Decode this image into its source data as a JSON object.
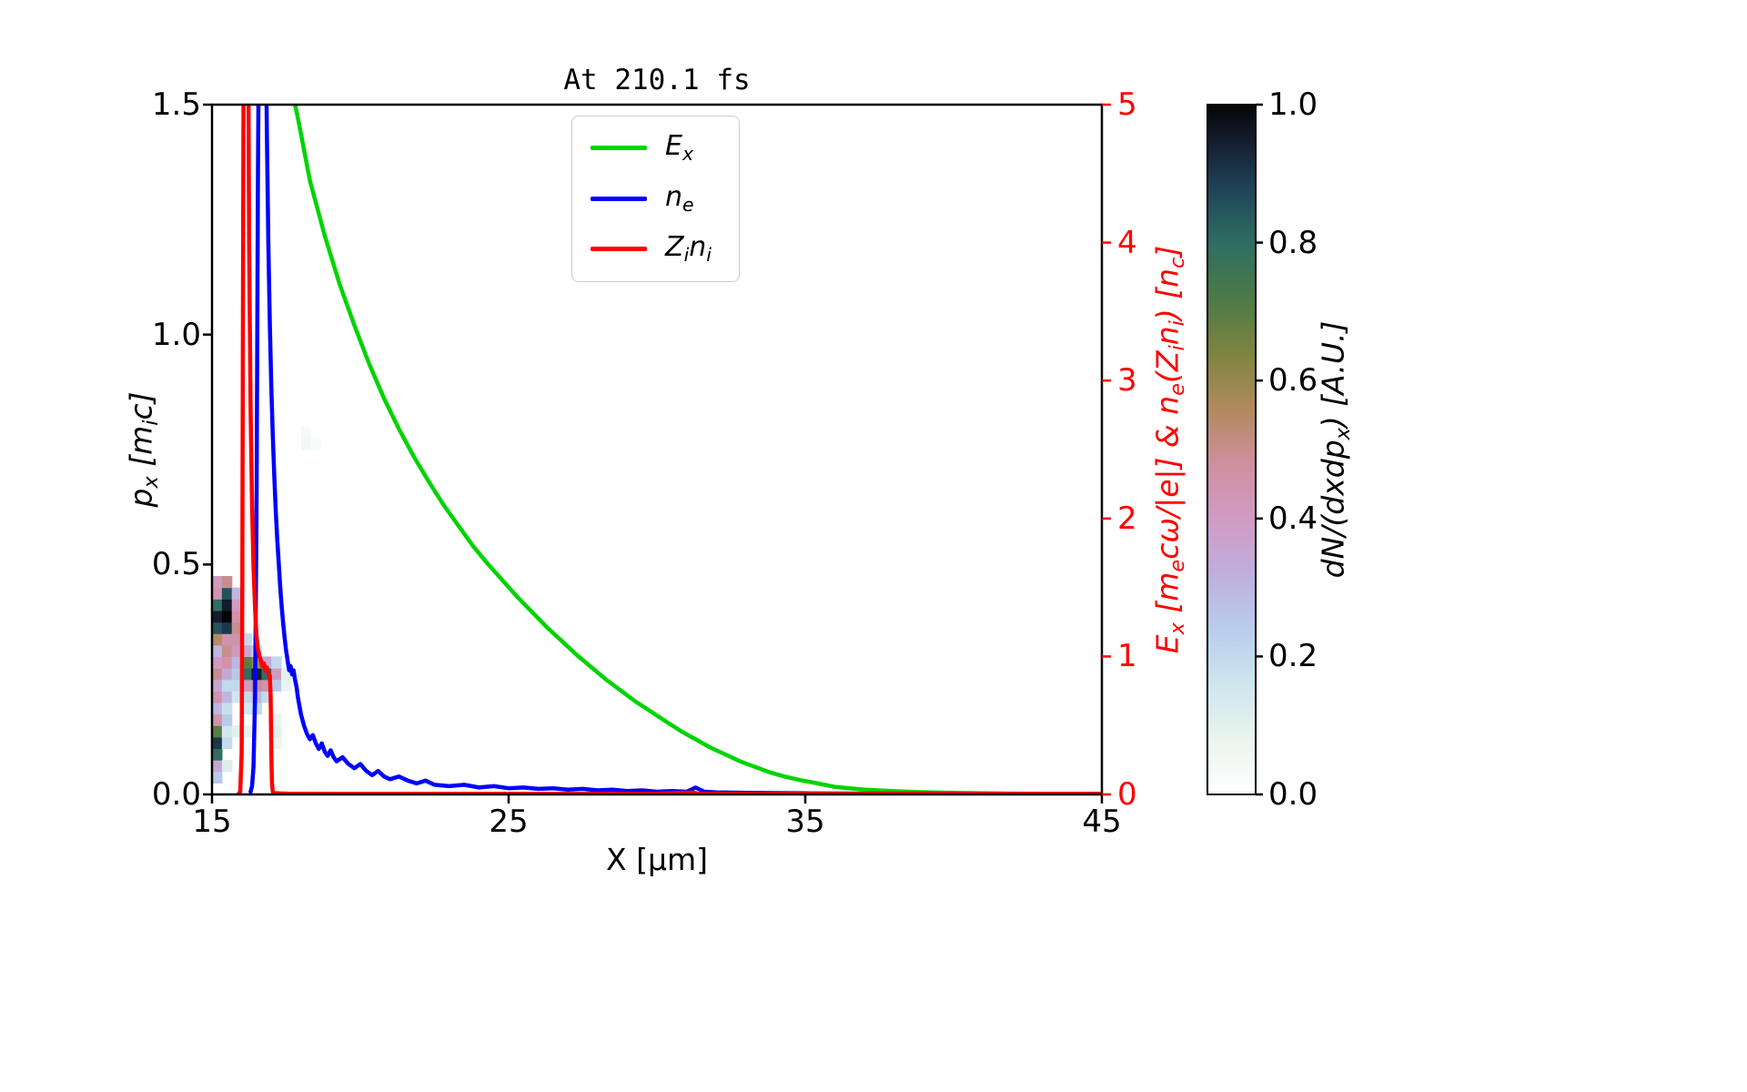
{
  "chart_data": {
    "type": "line",
    "title": "At 210.1 fs",
    "xlabel": "X [μm]",
    "ylabel_left": "p_{x} [m_{i}c]",
    "ylabel_right": "E_{x} [m_{e}cω/|e|] & n_{e}(Z_{i}n_{i}) [n_{c}]",
    "xlim": [
      15,
      45
    ],
    "ylim_left": [
      0,
      1.5
    ],
    "ylim_right": [
      0,
      5
    ],
    "xticks": [
      "15",
      "25",
      "35",
      "45"
    ],
    "yticks_left": [
      "0.0",
      "0.5",
      "1.0",
      "1.5"
    ],
    "yticks_right": [
      "0",
      "1",
      "2",
      "3",
      "4",
      "5"
    ],
    "axis_colors": {
      "left": "#000000",
      "right": "#ff0000"
    },
    "grid": false,
    "legend_position": "upper center",
    "legend": [
      {
        "id": "ex",
        "label": "E_{x}",
        "color": "#00d400"
      },
      {
        "id": "ne",
        "label": "n_{e}",
        "color": "#0000ff"
      },
      {
        "id": "zini",
        "label": "Z_{i}n_{i}",
        "color": "#ff0000"
      }
    ],
    "series": [
      {
        "id": "ex",
        "name": "E_x",
        "color": "#00d400",
        "axis": "right",
        "x": [
          17.6,
          17.9,
          18.3,
          18.8,
          19.3,
          19.8,
          20.3,
          20.8,
          21.3,
          21.8,
          22.3,
          22.8,
          23.3,
          23.8,
          24.3,
          24.8,
          25.3,
          25.8,
          26.3,
          26.8,
          27.3,
          27.8,
          28.3,
          28.8,
          29.3,
          29.8,
          30.3,
          30.8,
          31.3,
          31.8,
          32.3,
          32.8,
          33.3,
          33.8,
          34.3,
          34.8,
          35.3,
          36,
          37,
          38,
          39,
          40,
          41,
          42,
          43,
          44,
          45
        ],
        "y": [
          5.2,
          4.9,
          4.45,
          4.05,
          3.7,
          3.4,
          3.12,
          2.87,
          2.65,
          2.45,
          2.27,
          2.1,
          1.95,
          1.8,
          1.67,
          1.55,
          1.43,
          1.32,
          1.21,
          1.11,
          1.01,
          0.92,
          0.83,
          0.75,
          0.67,
          0.6,
          0.53,
          0.46,
          0.4,
          0.34,
          0.29,
          0.24,
          0.2,
          0.16,
          0.13,
          0.105,
          0.085,
          0.055,
          0.035,
          0.024,
          0.016,
          0.011,
          0.008,
          0.006,
          0.005,
          0.004,
          0.0035
        ]
      },
      {
        "id": "ne",
        "name": "n_e",
        "color": "#0000ff",
        "axis": "right",
        "x": [
          16.3,
          16.35,
          16.4,
          16.45,
          16.5,
          16.55,
          16.6,
          16.7,
          16.8,
          16.85,
          16.9,
          16.95,
          17.0,
          17.05,
          17.1,
          17.15,
          17.2,
          17.25,
          17.3,
          17.35,
          17.4,
          17.45,
          17.5,
          17.55,
          17.6,
          17.65,
          17.7,
          17.75,
          17.8,
          17.85,
          17.9,
          18.0,
          18.1,
          18.2,
          18.3,
          18.4,
          18.5,
          18.6,
          18.7,
          18.8,
          18.9,
          19.0,
          19.1,
          19.2,
          19.4,
          19.6,
          19.8,
          20.0,
          20.2,
          20.4,
          20.6,
          20.8,
          21.0,
          21.3,
          21.6,
          21.9,
          22.2,
          22.5,
          23.0,
          23.5,
          24.0,
          24.5,
          25.0,
          25.5,
          26.0,
          26.5,
          27.0,
          27.5,
          28.0,
          28.5,
          29.0,
          29.5,
          30.0,
          30.5,
          31.0,
          31.3,
          31.6,
          32.0,
          33,
          34,
          35,
          37,
          40,
          45
        ],
        "y": [
          0.02,
          0.06,
          0.2,
          0.7,
          2.0,
          4.5,
          6.2,
          6.5,
          5.8,
          4.8,
          4.0,
          3.4,
          2.95,
          2.6,
          2.3,
          2.05,
          1.85,
          1.67,
          1.5,
          1.36,
          1.24,
          1.13,
          1.04,
          0.97,
          0.9,
          0.93,
          0.87,
          0.9,
          0.83,
          0.78,
          0.7,
          0.58,
          0.5,
          0.44,
          0.4,
          0.43,
          0.37,
          0.33,
          0.37,
          0.31,
          0.28,
          0.32,
          0.27,
          0.24,
          0.27,
          0.22,
          0.19,
          0.22,
          0.17,
          0.14,
          0.17,
          0.13,
          0.11,
          0.13,
          0.1,
          0.08,
          0.1,
          0.07,
          0.06,
          0.07,
          0.05,
          0.06,
          0.045,
          0.05,
          0.04,
          0.045,
          0.035,
          0.04,
          0.03,
          0.035,
          0.025,
          0.03,
          0.02,
          0.025,
          0.02,
          0.05,
          0.02,
          0.015,
          0.012,
          0.01,
          0.008,
          0.006,
          0.005,
          0.004
        ]
      },
      {
        "id": "zini",
        "name": "Z_i n_i",
        "color": "#ff0000",
        "axis": "right",
        "x": [
          15.9,
          15.95,
          16.0,
          16.02,
          16.05,
          16.08,
          16.2,
          16.22,
          16.25,
          16.3,
          16.35,
          16.4,
          16.45,
          16.5,
          16.55,
          16.6,
          16.65,
          16.7,
          16.75,
          16.8,
          16.85,
          16.9,
          16.95,
          16.98,
          17.0,
          17.02,
          17.05,
          17.1,
          17.3,
          17.6,
          18,
          19,
          20,
          22,
          24,
          26,
          28,
          30,
          31.2,
          31.4,
          33,
          35,
          38,
          41,
          45
        ],
        "y": [
          0.005,
          0.02,
          0.3,
          1.5,
          4.0,
          6.5,
          7.0,
          5.5,
          4.0,
          2.8,
          2.1,
          1.65,
          1.35,
          1.15,
          1.05,
          1.0,
          0.97,
          0.93,
          0.95,
          0.9,
          0.92,
          0.88,
          0.86,
          0.7,
          0.3,
          0.08,
          0.02,
          0.01,
          0.007,
          0.005,
          0.005,
          0.004,
          0.004,
          0.004,
          0.004,
          0.004,
          0.004,
          0.005,
          0.015,
          0.005,
          0.004,
          0.004,
          0.004,
          0.004,
          0.004
        ]
      }
    ],
    "heatmap": {
      "label": "dN/(dxdp_{x}) [A.U.]",
      "x0": 15,
      "dx": 0.3333,
      "p0": 0,
      "dp": 0.025,
      "value_range": [
        0,
        1
      ],
      "colorbar_ticks": [
        "0.0",
        "0.2",
        "0.4",
        "0.6",
        "0.8",
        "1.0"
      ],
      "colormap_stops": [
        [
          0.0,
          "#ffffff"
        ],
        [
          0.08,
          "#eaf4ee"
        ],
        [
          0.16,
          "#cde6ee"
        ],
        [
          0.24,
          "#b8cdec"
        ],
        [
          0.32,
          "#c0aede"
        ],
        [
          0.4,
          "#d09bc2"
        ],
        [
          0.48,
          "#cf8f9e"
        ],
        [
          0.56,
          "#b08a5c"
        ],
        [
          0.64,
          "#7d8440"
        ],
        [
          0.72,
          "#4c7a47"
        ],
        [
          0.8,
          "#2e6e62"
        ],
        [
          0.88,
          "#1f4257"
        ],
        [
          0.95,
          "#141b2c"
        ],
        [
          1.0,
          "#050507"
        ]
      ],
      "cells": [
        [
          0,
          1,
          0.25
        ],
        [
          0,
          2,
          0.35
        ],
        [
          0,
          3,
          0.8
        ],
        [
          0,
          4,
          0.9
        ],
        [
          0,
          5,
          0.7
        ],
        [
          0,
          6,
          0.45
        ],
        [
          0,
          7,
          0.3
        ],
        [
          0,
          8,
          0.45
        ],
        [
          0,
          9,
          0.35
        ],
        [
          0,
          10,
          0.5
        ],
        [
          0,
          11,
          0.4
        ],
        [
          0,
          12,
          0.3
        ],
        [
          0,
          13,
          0.55
        ],
        [
          0,
          14,
          0.85
        ],
        [
          0,
          15,
          0.95
        ],
        [
          0,
          16,
          0.8
        ],
        [
          0,
          17,
          0.45
        ],
        [
          0,
          18,
          0.4
        ],
        [
          1,
          2,
          0.12
        ],
        [
          1,
          4,
          0.2
        ],
        [
          1,
          5,
          0.15
        ],
        [
          1,
          6,
          0.25
        ],
        [
          1,
          7,
          0.18
        ],
        [
          1,
          8,
          0.3
        ],
        [
          1,
          9,
          0.2
        ],
        [
          1,
          10,
          0.35
        ],
        [
          1,
          11,
          0.45
        ],
        [
          1,
          12,
          0.5
        ],
        [
          1,
          13,
          0.45
        ],
        [
          1,
          14,
          0.9
        ],
        [
          1,
          15,
          1.0
        ],
        [
          1,
          16,
          0.95
        ],
        [
          1,
          17,
          0.85
        ],
        [
          1,
          18,
          0.5
        ],
        [
          2,
          5,
          0.1
        ],
        [
          2,
          8,
          0.15
        ],
        [
          2,
          9,
          0.2
        ],
        [
          2,
          10,
          0.25
        ],
        [
          2,
          11,
          0.3
        ],
        [
          2,
          12,
          0.4
        ],
        [
          2,
          13,
          0.45
        ],
        [
          2,
          14,
          0.5
        ],
        [
          2,
          15,
          0.45
        ],
        [
          2,
          16,
          0.4
        ],
        [
          2,
          17,
          0.3
        ],
        [
          3,
          5,
          0.08
        ],
        [
          3,
          7,
          0.15
        ],
        [
          3,
          8,
          0.2
        ],
        [
          3,
          9,
          0.4
        ],
        [
          3,
          10,
          0.8
        ],
        [
          3,
          11,
          0.7
        ],
        [
          3,
          12,
          0.35
        ],
        [
          3,
          13,
          0.2
        ],
        [
          4,
          7,
          0.2
        ],
        [
          4,
          8,
          0.3
        ],
        [
          4,
          9,
          0.5
        ],
        [
          4,
          10,
          0.95
        ],
        [
          4,
          11,
          0.6
        ],
        [
          4,
          12,
          0.2
        ],
        [
          5,
          8,
          0.2
        ],
        [
          5,
          9,
          0.45
        ],
        [
          5,
          10,
          0.8
        ],
        [
          5,
          11,
          0.35
        ],
        [
          6,
          4,
          0.07
        ],
        [
          6,
          5,
          0.1
        ],
        [
          6,
          6,
          0.08
        ],
        [
          6,
          9,
          0.25
        ],
        [
          6,
          10,
          0.4
        ],
        [
          6,
          11,
          0.2
        ],
        [
          7,
          9,
          0.08
        ],
        [
          7,
          10,
          0.1
        ],
        [
          8,
          10,
          0.05
        ],
        [
          9,
          30,
          0.05
        ],
        [
          9,
          31,
          0.04
        ],
        [
          10,
          30,
          0.03
        ]
      ]
    }
  }
}
